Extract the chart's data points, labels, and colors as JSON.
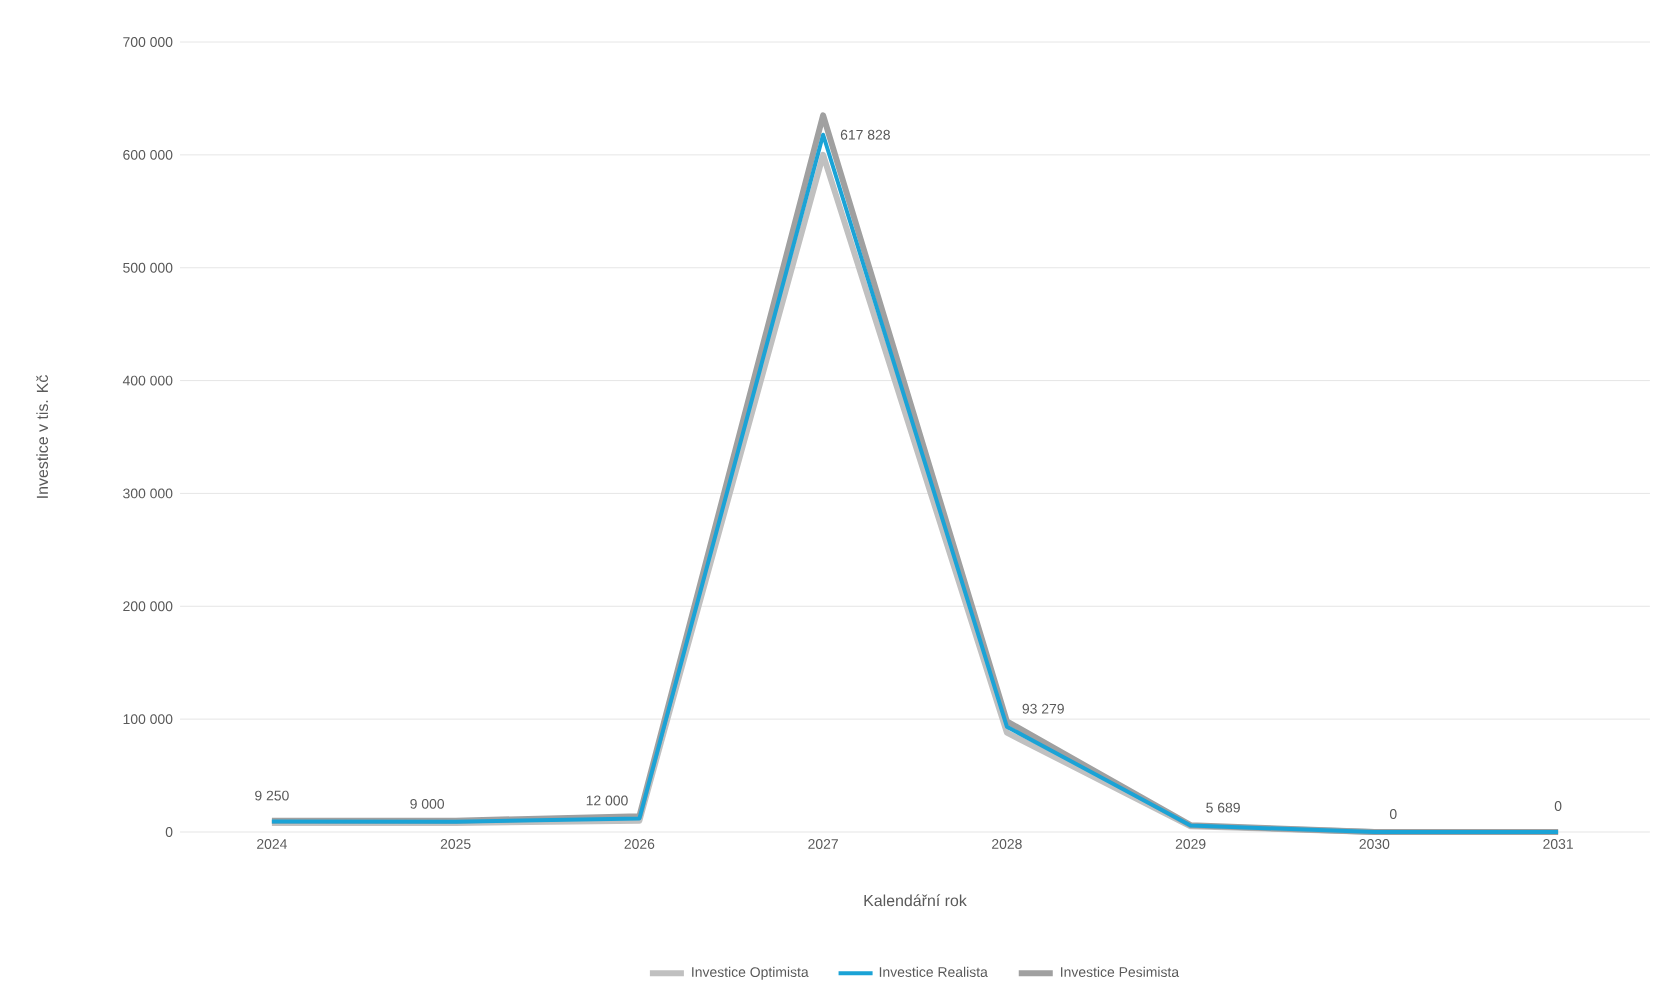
{
  "chart_data": {
    "type": "line",
    "xlabel": "Kalendářní rok",
    "ylabel": "Investice v tis. Kč",
    "categories": [
      "2024",
      "2025",
      "2026",
      "2027",
      "2028",
      "2029",
      "2030",
      "2031"
    ],
    "series": [
      {
        "name": "Investice Optimista",
        "color": "#c0c0c0",
        "values": [
          8000,
          8000,
          10000,
          600000,
          88000,
          5000,
          0,
          0
        ]
      },
      {
        "name": "Investice Realista",
        "color": "#1ba3d6",
        "values": [
          9250,
          9000,
          12000,
          617828,
          93279,
          5689,
          0,
          0
        ],
        "value_labels": [
          "9 250",
          "9 000",
          "12 000",
          "617 828",
          "93 279",
          "5 689",
          "0",
          "0"
        ]
      },
      {
        "name": "Investice Pesimista",
        "color": "#a0a0a0",
        "values": [
          10000,
          10000,
          14000,
          635000,
          98000,
          6000,
          0,
          0
        ]
      }
    ],
    "ylim": [
      0,
      700000
    ],
    "yticks": [
      0,
      {
        "value": 100000,
        "label": "100 000"
      },
      {
        "value": 200000,
        "label": "200 000"
      },
      {
        "value": 300000,
        "label": "300 000"
      },
      {
        "value": 400000,
        "label": "400 000"
      },
      {
        "value": 500000,
        "label": "500 000"
      },
      {
        "value": 600000,
        "label": "600 000"
      },
      {
        "value": 700000,
        "label": "700 000"
      }
    ],
    "grid": "y",
    "legend": "bottom",
    "marker": "none",
    "line_style": "solid"
  }
}
